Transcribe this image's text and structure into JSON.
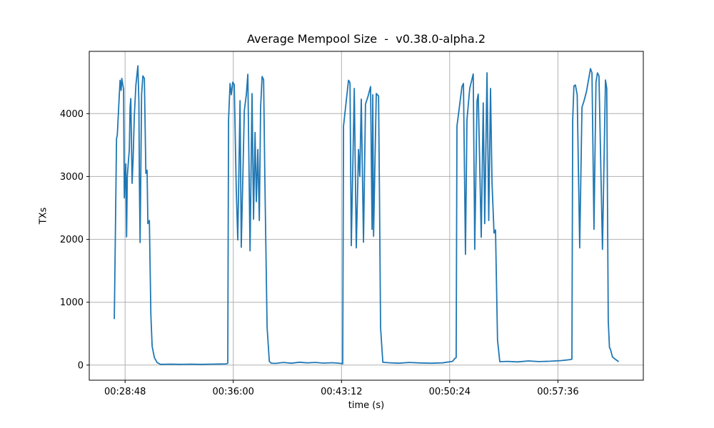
{
  "figure": {
    "title": "Average Mempool Size  -  v0.38.0-alpha.2"
  },
  "chart_data": {
    "type": "line",
    "title": "Average Mempool Size  -  v0.38.0-alpha.2",
    "xlabel": "time (s)",
    "ylabel": "TXs",
    "x_unit": "time of day HH:MM:SS expressed as seconds",
    "xlim": [
      1585,
      3797
    ],
    "ylim": [
      -240,
      4990
    ],
    "grid": true,
    "legend": "none",
    "background": "#ffffff",
    "grid_color": "#b0b0b0",
    "axis_color": "#000000",
    "line_color": "#1f77b4",
    "line_width": 1.8,
    "x_ticks": [
      {
        "value": 1728,
        "label": "00:28:48"
      },
      {
        "value": 2160,
        "label": "00:36:00"
      },
      {
        "value": 2592,
        "label": "00:43:12"
      },
      {
        "value": 3024,
        "label": "00:50:24"
      },
      {
        "value": 3456,
        "label": "00:57:36"
      }
    ],
    "y_ticks": [
      0,
      1000,
      2000,
      3000,
      4000
    ],
    "series": [
      {
        "name": "average mempool size",
        "points": [
          [
            1685,
            740
          ],
          [
            1689,
            2000
          ],
          [
            1694,
            3600
          ],
          [
            1697,
            3660
          ],
          [
            1705,
            4300
          ],
          [
            1708,
            4530
          ],
          [
            1712,
            4370
          ],
          [
            1715,
            4560
          ],
          [
            1722,
            4380
          ],
          [
            1725,
            2660
          ],
          [
            1731,
            3200
          ],
          [
            1734,
            2040
          ],
          [
            1737,
            3000
          ],
          [
            1745,
            3430
          ],
          [
            1748,
            4100
          ],
          [
            1751,
            4240
          ],
          [
            1756,
            2890
          ],
          [
            1760,
            3270
          ],
          [
            1765,
            3960
          ],
          [
            1771,
            4450
          ],
          [
            1779,
            4760
          ],
          [
            1783,
            4200
          ],
          [
            1785,
            2950
          ],
          [
            1788,
            1950
          ],
          [
            1794,
            4300
          ],
          [
            1799,
            4600
          ],
          [
            1805,
            4560
          ],
          [
            1811,
            3050
          ],
          [
            1816,
            3100
          ],
          [
            1819,
            2250
          ],
          [
            1825,
            2300
          ],
          [
            1831,
            800
          ],
          [
            1836,
            300
          ],
          [
            1845,
            120
          ],
          [
            1856,
            40
          ],
          [
            1870,
            12
          ],
          [
            1910,
            15
          ],
          [
            1950,
            12
          ],
          [
            1990,
            15
          ],
          [
            2030,
            12
          ],
          [
            2075,
            15
          ],
          [
            2110,
            18
          ],
          [
            2132,
            20
          ],
          [
            2138,
            30
          ],
          [
            2141,
            3900
          ],
          [
            2147,
            4480
          ],
          [
            2152,
            4300
          ],
          [
            2158,
            4500
          ],
          [
            2164,
            4460
          ],
          [
            2172,
            2790
          ],
          [
            2178,
            1990
          ],
          [
            2187,
            4205
          ],
          [
            2192,
            1875
          ],
          [
            2204,
            4050
          ],
          [
            2212,
            4300
          ],
          [
            2218,
            4625
          ],
          [
            2227,
            1818
          ],
          [
            2235,
            4318
          ],
          [
            2241,
            2320
          ],
          [
            2247,
            3700
          ],
          [
            2252,
            2600
          ],
          [
            2258,
            3430
          ],
          [
            2264,
            2300
          ],
          [
            2269,
            4100
          ],
          [
            2275,
            4590
          ],
          [
            2281,
            4540
          ],
          [
            2286,
            3000
          ],
          [
            2289,
            2160
          ],
          [
            2295,
            600
          ],
          [
            2304,
            60
          ],
          [
            2312,
            30
          ],
          [
            2330,
            28
          ],
          [
            2360,
            42
          ],
          [
            2392,
            30
          ],
          [
            2424,
            46
          ],
          [
            2455,
            36
          ],
          [
            2487,
            42
          ],
          [
            2520,
            32
          ],
          [
            2556,
            38
          ],
          [
            2588,
            28
          ],
          [
            2597,
            22
          ],
          [
            2600,
            3800
          ],
          [
            2620,
            4530
          ],
          [
            2626,
            4490
          ],
          [
            2631,
            1900
          ],
          [
            2643,
            4400
          ],
          [
            2651,
            1864
          ],
          [
            2657,
            2900
          ],
          [
            2660,
            3430
          ],
          [
            2665,
            3000
          ],
          [
            2671,
            4230
          ],
          [
            2680,
            1955
          ],
          [
            2688,
            4150
          ],
          [
            2697,
            4260
          ],
          [
            2708,
            4430
          ],
          [
            2714,
            2160
          ],
          [
            2717,
            4300
          ],
          [
            2720,
            2050
          ],
          [
            2731,
            4320
          ],
          [
            2740,
            4280
          ],
          [
            2744,
            2560
          ],
          [
            2748,
            600
          ],
          [
            2757,
            45
          ],
          [
            2780,
            38
          ],
          [
            2820,
            30
          ],
          [
            2862,
            42
          ],
          [
            2905,
            34
          ],
          [
            2950,
            30
          ],
          [
            2995,
            36
          ],
          [
            3035,
            60
          ],
          [
            3046,
            110
          ],
          [
            3050,
            120
          ],
          [
            3053,
            3800
          ],
          [
            3073,
            4430
          ],
          [
            3079,
            4480
          ],
          [
            3087,
            1761
          ],
          [
            3093,
            3900
          ],
          [
            3104,
            4400
          ],
          [
            3118,
            4630
          ],
          [
            3124,
            1841
          ],
          [
            3133,
            4200
          ],
          [
            3138,
            4310
          ],
          [
            3150,
            2034
          ],
          [
            3158,
            4170
          ],
          [
            3164,
            2250
          ],
          [
            3173,
            4650
          ],
          [
            3180,
            2300
          ],
          [
            3187,
            4400
          ],
          [
            3193,
            2900
          ],
          [
            3201,
            2100
          ],
          [
            3207,
            2150
          ],
          [
            3215,
            400
          ],
          [
            3224,
            55
          ],
          [
            3255,
            60
          ],
          [
            3295,
            52
          ],
          [
            3338,
            66
          ],
          [
            3380,
            56
          ],
          [
            3425,
            62
          ],
          [
            3470,
            72
          ],
          [
            3505,
            88
          ],
          [
            3512,
            95
          ],
          [
            3515,
            3900
          ],
          [
            3520,
            4440
          ],
          [
            3526,
            4455
          ],
          [
            3533,
            4300
          ],
          [
            3543,
            1864
          ],
          [
            3552,
            4100
          ],
          [
            3560,
            4200
          ],
          [
            3570,
            4350
          ],
          [
            3586,
            4716
          ],
          [
            3592,
            4650
          ],
          [
            3600,
            2160
          ],
          [
            3608,
            4500
          ],
          [
            3614,
            4648
          ],
          [
            3620,
            4600
          ],
          [
            3634,
            1841
          ],
          [
            3646,
            4534
          ],
          [
            3651,
            4400
          ],
          [
            3657,
            700
          ],
          [
            3662,
            280
          ],
          [
            3666,
            250
          ],
          [
            3674,
            130
          ],
          [
            3686,
            90
          ],
          [
            3697,
            60
          ]
        ]
      }
    ]
  }
}
